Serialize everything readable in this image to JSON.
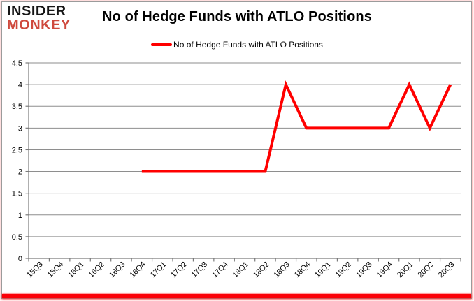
{
  "branding": {
    "logo_line1": "INSIDER",
    "logo_line2": "MONKEY",
    "logo_primary_color": "#161616",
    "logo_accent_color": "#cf4a3e"
  },
  "header": {
    "title": "No of Hedge Funds with ATLO Positions"
  },
  "legend": {
    "label": "No of Hedge Funds with ATLO Positions",
    "line_color": "#ff0000"
  },
  "chart_data": {
    "type": "line",
    "title": "No of Hedge Funds with ATLO Positions",
    "categories": [
      "15Q3",
      "15Q4",
      "16Q1",
      "16Q2",
      "16Q3",
      "16Q4",
      "17Q1",
      "17Q2",
      "17Q3",
      "17Q4",
      "18Q1",
      "18Q2",
      "18Q3",
      "18Q4",
      "19Q1",
      "19Q2",
      "19Q3",
      "19Q4",
      "20Q1",
      "20Q2",
      "20Q3"
    ],
    "series": [
      {
        "name": "No of Hedge Funds with ATLO Positions",
        "color": "#ff0000",
        "line_width": 4,
        "values": [
          null,
          null,
          null,
          null,
          null,
          2,
          2,
          2,
          2,
          2,
          2,
          2,
          4,
          3,
          3,
          3,
          3,
          3,
          4,
          3,
          4
        ]
      }
    ],
    "xlabel": "",
    "ylabel": "",
    "ylim": [
      0,
      4.5
    ],
    "ytick_step": 0.5,
    "ytick_labels": [
      "0",
      "0.5",
      "1",
      "1.5",
      "2",
      "2.5",
      "3",
      "3.5",
      "4",
      "4.5"
    ],
    "grid": "horizontal",
    "legend_position": "top-center",
    "styles": {
      "gridline_color": "#8e8e8e",
      "axis_color": "#7a7a7a",
      "tick_label_color": "#000000",
      "accent_bar_color": "#fb0007"
    }
  }
}
